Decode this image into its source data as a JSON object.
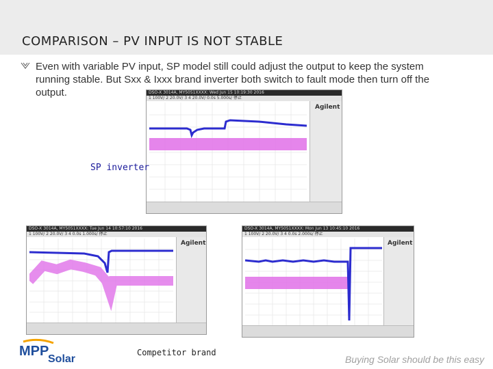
{
  "slide": {
    "title": "COMPARISON – PV INPUT IS NOT STABLE",
    "bullet_icon": "bullet-arrow-icon",
    "body": "Even with variable PV input, SP model still could adjust the output to keep the system running stable. But Sxx & Ixxx brand inverter both switch to fault mode then turn off the output.",
    "label_sp": "SP inverter",
    "label_competitor": "Competitor brand"
  },
  "scopes": {
    "top": {
      "header": "DSO-X 3014A, MY5051XXXX: Wed Jun 15 10:19:30 2016",
      "settings": "1  100V/   2  20.0V/   3        4  20.0V/         0.0s    5.000s/    停止"
    },
    "bottom_left": {
      "header": "DSO-X 3014A, MY5051XXXX: Tue Jun 14 10:57:10 2016",
      "settings": "1  100V/   2  20.0V/   3        4         0.0s    1.000s/    停止"
    },
    "bottom_right": {
      "header": "DSO-X 3014A, MY5051XXXX: Mon Jun 13 10:45:10 2016",
      "settings": "1  100V/   2  20.0V/   3        4         0.0s    2.000s/    停止"
    },
    "brand": "Agilent"
  },
  "footer": {
    "logo_top": "MPP",
    "logo_bottom": "Solar",
    "slogan": "Buying Solar should be this easy"
  },
  "colors": {
    "blue_trace": "#2c2ccf",
    "magenta_trace": "#e070e8"
  }
}
